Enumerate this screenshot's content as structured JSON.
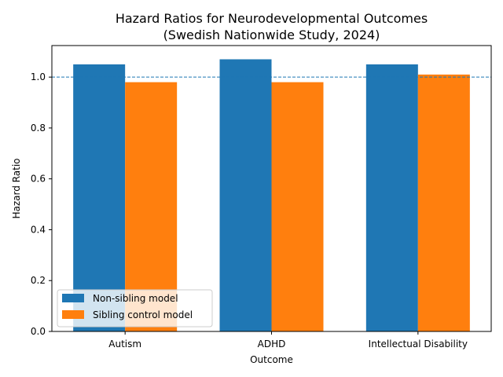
{
  "chart_data": {
    "type": "bar",
    "title": "Hazard Ratios for Neurodevelopmental Outcomes",
    "subtitle": "(Swedish Nationwide Study, 2024)",
    "xlabel": "Outcome",
    "ylabel": "Hazard Ratio",
    "categories": [
      "Autism",
      "ADHD",
      "Intellectual Disability"
    ],
    "series": [
      {
        "name": "Non-sibling model",
        "values": [
          1.05,
          1.07,
          1.05
        ],
        "color": "#1f77b4"
      },
      {
        "name": "Sibling control model",
        "values": [
          0.98,
          0.98,
          1.01
        ],
        "color": "#ff7f0e"
      }
    ],
    "ylim": [
      0,
      1.124
    ],
    "yticks": [
      "0.0",
      "0.2",
      "0.4",
      "0.6",
      "0.8",
      "1.0"
    ],
    "reference_line": {
      "value": 1.0,
      "style": "dashed",
      "color": "#1f77b4"
    },
    "legend_position": "lower-left",
    "grid": false
  }
}
